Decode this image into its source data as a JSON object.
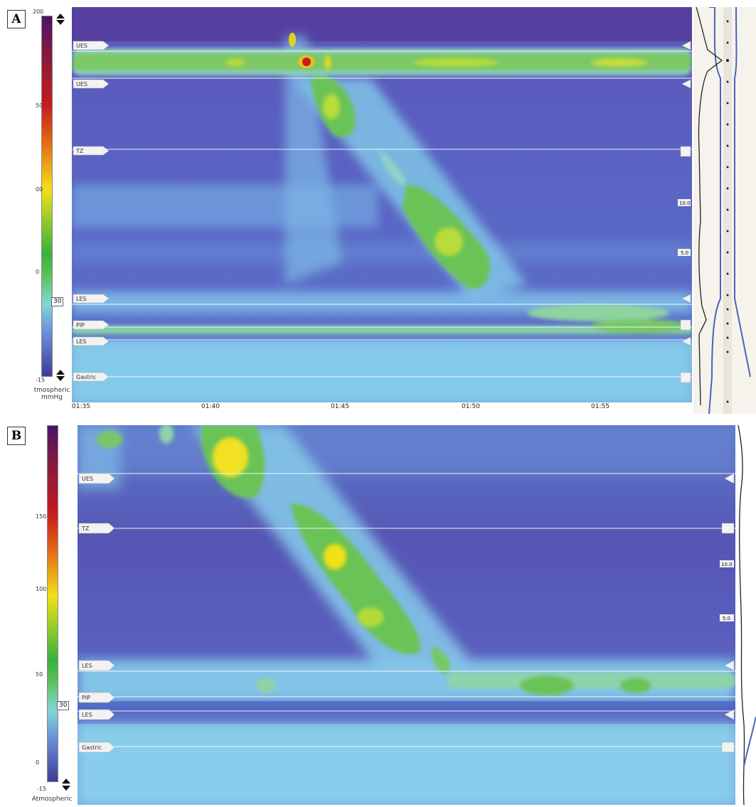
{
  "panels": [
    {
      "label": "A",
      "scale": {
        "top": "200",
        "bottom": "-15",
        "ticks": [
          "50",
          "00",
          "0"
        ],
        "marker": "30",
        "unit1": "tmospheric",
        "unit2": "mmHg"
      },
      "landmarks": [
        "UES",
        "UES",
        "TZ",
        "LES",
        "PIP",
        "LES",
        "Gastric"
      ],
      "distances": [
        "10.0",
        "5.0"
      ],
      "x_ticks": [
        "01:35",
        "01:40",
        "01:45",
        "01:50",
        "01:55"
      ]
    },
    {
      "label": "B",
      "scale": {
        "top": "",
        "bottom": "-15",
        "ticks": [
          "150",
          "100",
          "50",
          "0"
        ],
        "marker": "30",
        "unit1": "Atmospheric",
        "unit2": ""
      },
      "landmarks": [
        "UES",
        "TZ",
        "LES",
        "PIP",
        "LES",
        "Gastric"
      ],
      "distances": [
        "10.0",
        "5.0"
      ],
      "x_ticks": []
    }
  ],
  "chart_data": [
    {
      "type": "heatmap",
      "title": "",
      "colorbar": {
        "min": -15,
        "max": 200,
        "unit": "mmHg",
        "isobar": 30
      },
      "x_ticks": [
        "01:35",
        "01:40",
        "01:45",
        "01:50",
        "01:55"
      ],
      "landmarks": [
        "UES",
        "UES",
        "TZ",
        "LES",
        "PIP",
        "LES",
        "Gastric"
      ],
      "peristaltic_wave": "continuous pressure band descending from UES (~01:43) to LES (~01:51)"
    },
    {
      "type": "heatmap",
      "title": "",
      "colorbar": {
        "min": -15,
        "max": 200,
        "unit": "mmHg",
        "isobar": 30
      },
      "landmarks": [
        "UES",
        "TZ",
        "LES",
        "PIP",
        "LES",
        "Gastric"
      ],
      "peristaltic_wave": "continuous pressure band descending from UES to LES"
    }
  ]
}
